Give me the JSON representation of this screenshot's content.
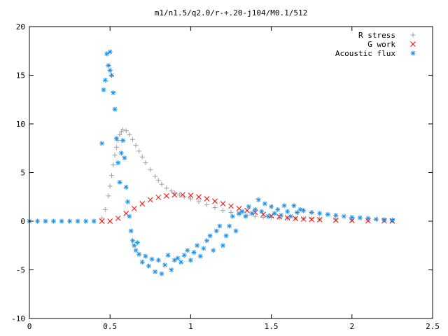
{
  "chart_data": {
    "type": "scatter",
    "title": "m1/n1.5/q2.0/r-+.20-j104/M0.1/512",
    "xlabel": "",
    "ylabel": "",
    "xlim": [
      0,
      2.5
    ],
    "ylim": [
      -10,
      20
    ],
    "xticks": [
      0,
      0.5,
      1,
      1.5,
      2,
      2.5
    ],
    "xtick_labels": [
      "0",
      "0.5",
      "1",
      "1.5",
      "2",
      "2.5"
    ],
    "yticks": [
      -10,
      -5,
      0,
      5,
      10,
      15,
      20
    ],
    "ytick_labels": [
      "-10",
      "-5",
      "0",
      "5",
      "10",
      "15",
      "20"
    ],
    "grid": false,
    "legend_position": "top-right",
    "series": [
      {
        "name": "R stress",
        "marker": "plus",
        "color": "#a0a0a0",
        "x": [
          0.0,
          0.1,
          0.2,
          0.3,
          0.4,
          0.45,
          0.47,
          0.49,
          0.5,
          0.51,
          0.52,
          0.53,
          0.54,
          0.55,
          0.56,
          0.57,
          0.58,
          0.6,
          0.62,
          0.64,
          0.66,
          0.68,
          0.7,
          0.72,
          0.75,
          0.78,
          0.8,
          0.82,
          0.85,
          0.88,
          0.9,
          0.93,
          0.96,
          1.0,
          1.05,
          1.1,
          1.15,
          1.2,
          1.25,
          1.3,
          1.35,
          1.4,
          1.45,
          1.5,
          1.55,
          1.6,
          1.65,
          1.7,
          1.75,
          1.8,
          1.9,
          2.0,
          2.1,
          2.2,
          2.25
        ],
        "y": [
          0,
          0,
          0,
          0,
          0,
          0.3,
          1.2,
          2.6,
          3.6,
          4.7,
          5.8,
          6.8,
          7.6,
          8.3,
          8.9,
          9.2,
          9.4,
          9.3,
          8.9,
          8.4,
          7.8,
          7.2,
          6.6,
          6.0,
          5.3,
          4.6,
          4.2,
          3.8,
          3.4,
          3.1,
          2.9,
          2.7,
          2.5,
          2.3,
          2.0,
          1.7,
          1.4,
          1.1,
          0.9,
          0.7,
          0.6,
          0.5,
          0.4,
          0.4,
          0.35,
          0.3,
          0.3,
          0.25,
          0.25,
          0.2,
          0.2,
          0.15,
          0.12,
          0.1,
          0.1
        ]
      },
      {
        "name": "G work",
        "marker": "cross",
        "color": "#ff0000",
        "x": [
          0.45,
          0.5,
          0.55,
          0.6,
          0.65,
          0.7,
          0.75,
          0.8,
          0.85,
          0.9,
          0.95,
          1.0,
          1.05,
          1.1,
          1.15,
          1.2,
          1.25,
          1.3,
          1.35,
          1.4,
          1.45,
          1.5,
          1.55,
          1.6,
          1.65,
          1.7,
          1.75,
          1.8,
          1.9,
          2.0,
          2.1,
          2.2,
          2.25
        ],
        "y": [
          0,
          0,
          0.3,
          0.8,
          1.3,
          1.8,
          2.2,
          2.45,
          2.6,
          2.7,
          2.72,
          2.65,
          2.5,
          2.3,
          2.05,
          1.8,
          1.55,
          1.3,
          1.1,
          0.9,
          0.7,
          0.55,
          0.45,
          0.35,
          0.28,
          0.22,
          0.18,
          0.15,
          0.1,
          0.07,
          0.05,
          0.03,
          0.02
        ]
      },
      {
        "name": "Acoustic flux",
        "marker": "star",
        "color": "#1e90e8",
        "x": [
          0.0,
          0.05,
          0.1,
          0.15,
          0.2,
          0.25,
          0.3,
          0.35,
          0.4,
          0.45,
          0.46,
          0.47,
          0.48,
          0.49,
          0.5,
          0.5,
          0.51,
          0.52,
          0.53,
          0.54,
          0.55,
          0.56,
          0.57,
          0.58,
          0.59,
          0.6,
          0.61,
          0.62,
          0.63,
          0.64,
          0.65,
          0.66,
          0.67,
          0.68,
          0.7,
          0.72,
          0.74,
          0.76,
          0.78,
          0.8,
          0.82,
          0.84,
          0.86,
          0.88,
          0.9,
          0.92,
          0.94,
          0.96,
          0.98,
          1.0,
          1.02,
          1.04,
          1.06,
          1.08,
          1.1,
          1.12,
          1.14,
          1.16,
          1.18,
          1.2,
          1.22,
          1.24,
          1.26,
          1.28,
          1.3,
          1.32,
          1.34,
          1.36,
          1.38,
          1.4,
          1.42,
          1.44,
          1.46,
          1.48,
          1.5,
          1.52,
          1.54,
          1.56,
          1.58,
          1.6,
          1.62,
          1.64,
          1.66,
          1.68,
          1.7,
          1.75,
          1.8,
          1.85,
          1.9,
          1.95,
          2.0,
          2.05,
          2.1,
          2.15,
          2.2,
          2.25
        ],
        "y": [
          0,
          0,
          0,
          0,
          0,
          0,
          0,
          0,
          0,
          8.0,
          13.5,
          14.5,
          17.2,
          16.0,
          17.4,
          15.5,
          15.0,
          13.2,
          11.5,
          8.5,
          6.0,
          4.0,
          7.0,
          8.3,
          6.5,
          3.5,
          2.0,
          0.5,
          -1.0,
          -2.0,
          -2.5,
          -3.0,
          -2.2,
          -3.4,
          -4.2,
          -3.6,
          -4.6,
          -3.9,
          -5.2,
          -4.0,
          -5.4,
          -4.5,
          -3.5,
          -5.0,
          -4.0,
          -3.8,
          -4.2,
          -3.5,
          -3.0,
          -4.0,
          -3.2,
          -2.5,
          -3.6,
          -2.8,
          -2.0,
          -1.5,
          -3.0,
          -1.0,
          -0.5,
          -2.5,
          -1.5,
          -0.5,
          0.5,
          -1.0,
          0.8,
          1.0,
          0.5,
          1.5,
          0.8,
          1.2,
          2.2,
          1.0,
          1.8,
          0.5,
          1.5,
          0.8,
          1.2,
          0.6,
          1.6,
          1.0,
          0.5,
          1.6,
          0.9,
          1.2,
          1.1,
          0.9,
          0.8,
          0.7,
          0.6,
          0.5,
          0.4,
          0.35,
          0.3,
          0.2,
          0.15,
          0.1
        ]
      }
    ]
  }
}
